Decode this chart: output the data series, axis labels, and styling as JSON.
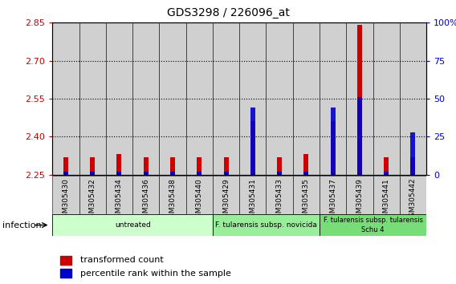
{
  "title": "GDS3298 / 226096_at",
  "samples": [
    "GSM305430",
    "GSM305432",
    "GSM305434",
    "GSM305436",
    "GSM305438",
    "GSM305440",
    "GSM305429",
    "GSM305431",
    "GSM305433",
    "GSM305435",
    "GSM305437",
    "GSM305439",
    "GSM305441",
    "GSM305442"
  ],
  "transformed_count": [
    2.32,
    2.32,
    2.33,
    2.32,
    2.32,
    2.32,
    2.32,
    2.46,
    2.32,
    2.33,
    2.46,
    2.84,
    2.32,
    2.32
  ],
  "percentile_rank": [
    2,
    2,
    2,
    2,
    2,
    2,
    2,
    44,
    2,
    2,
    44,
    51,
    2,
    28
  ],
  "ylim_left": [
    2.25,
    2.85
  ],
  "ylim_right": [
    0,
    100
  ],
  "yticks_left": [
    2.25,
    2.4,
    2.55,
    2.7,
    2.85
  ],
  "yticks_right": [
    0,
    25,
    50,
    75,
    100
  ],
  "ytick_labels_right": [
    "0",
    "25",
    "50",
    "75",
    "100%"
  ],
  "bar_color": "#cc0000",
  "marker_color": "#0000cc",
  "gridlines": [
    2.4,
    2.55,
    2.7
  ],
  "groups": [
    {
      "label": "untreated",
      "start": 0,
      "end": 6,
      "color": "#ccffcc"
    },
    {
      "label": "F. tularensis subsp. novicida",
      "start": 6,
      "end": 10,
      "color": "#99ee99"
    },
    {
      "label": "F. tularensis subsp. tularensis\nSchu 4",
      "start": 10,
      "end": 14,
      "color": "#77dd77"
    }
  ],
  "legend_items": [
    {
      "label": "transformed count",
      "color": "#cc0000"
    },
    {
      "label": "percentile rank within the sample",
      "color": "#0000cc"
    }
  ],
  "infection_label": "infection",
  "left_axis_color": "#cc0000",
  "right_axis_color": "#0000cc",
  "sample_bg_color": "#d0d0d0",
  "plot_bg_color": "#ffffff"
}
